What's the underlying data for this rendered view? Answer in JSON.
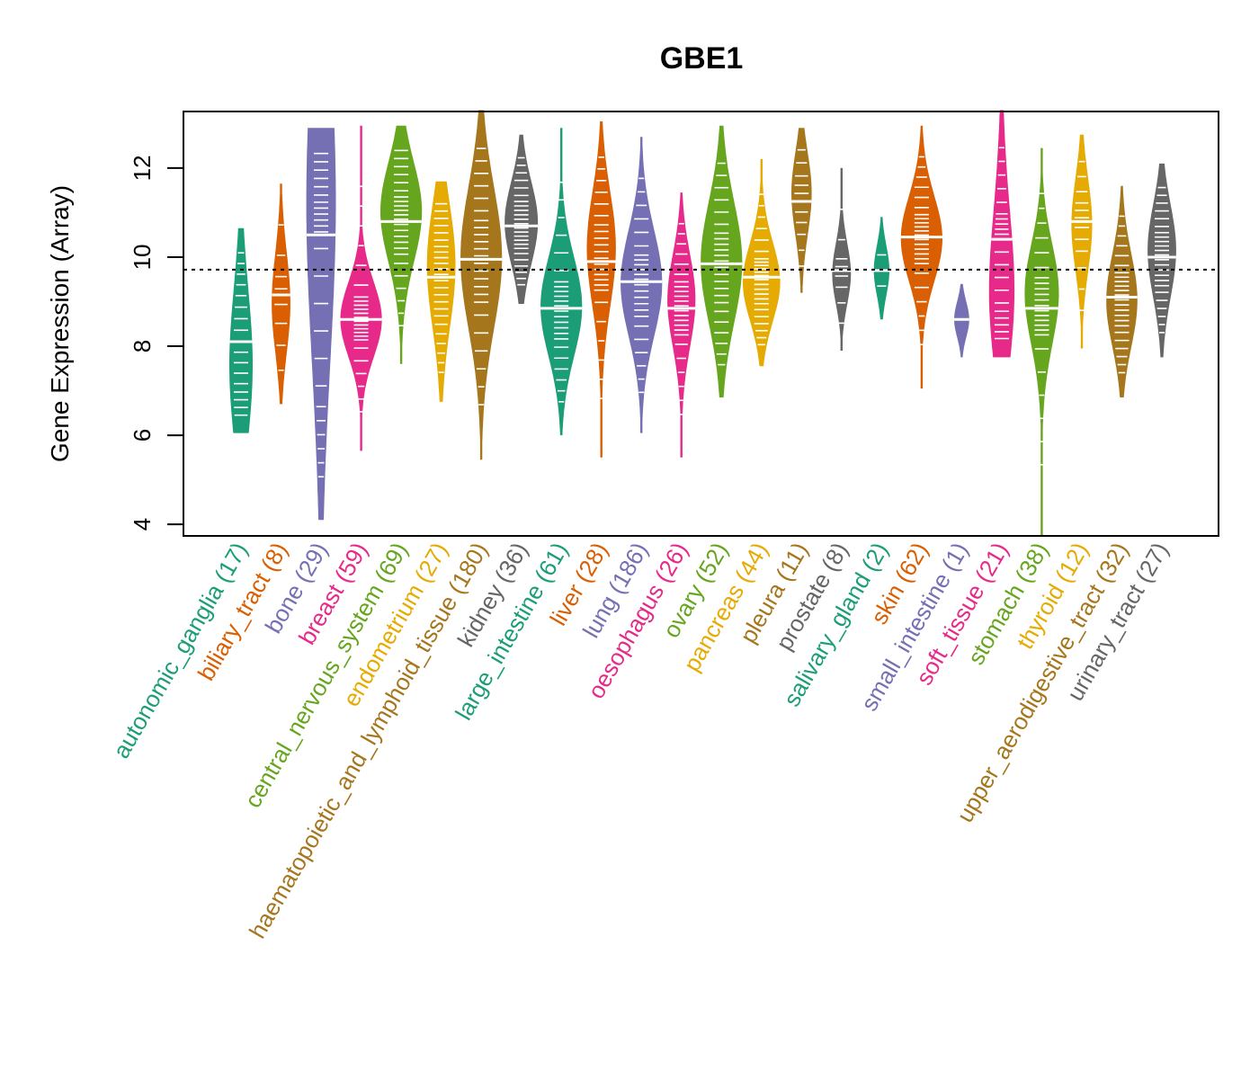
{
  "chart_data": {
    "type": "violin",
    "title": "GBE1",
    "xlabel": "",
    "ylabel": "Gene Expression (Array)",
    "ylim": [
      3.74,
      13.27
    ],
    "yticks": [
      4,
      6,
      8,
      10,
      12
    ],
    "reference_line": 9.72,
    "grid": false,
    "categories": [
      {
        "name": "autonomic_ganglia",
        "n": 17,
        "color": "#1B9E77",
        "min": 6.05,
        "q1": 7.1,
        "median": 8.1,
        "q3": 9.2,
        "max": 10.65,
        "mode": 7.4
      },
      {
        "name": "biliary_tract",
        "n": 8,
        "color": "#D95F02",
        "min": 6.7,
        "q1": 8.3,
        "median": 9.15,
        "q3": 9.7,
        "max": 11.65,
        "mode": 8.9
      },
      {
        "name": "bone",
        "n": 29,
        "color": "#7570B3",
        "min": 4.1,
        "q1": 6.8,
        "median": 10.5,
        "q3": 11.3,
        "max": 12.9,
        "mode": 11.5
      },
      {
        "name": "breast",
        "n": 59,
        "color": "#E7298A",
        "min": 5.65,
        "q1": 8.1,
        "median": 8.6,
        "q3": 9.15,
        "max": 12.95,
        "mode": 8.6
      },
      {
        "name": "central_nervous_system",
        "n": 69,
        "color": "#66A61E",
        "min": 7.6,
        "q1": 10.0,
        "median": 10.8,
        "q3": 11.4,
        "max": 12.95,
        "mode": 11.1
      },
      {
        "name": "endometrium",
        "n": 27,
        "color": "#E6AB02",
        "min": 6.75,
        "q1": 8.6,
        "median": 9.55,
        "q3": 10.3,
        "max": 11.7,
        "mode": 9.9
      },
      {
        "name": "haematopoietic_and_lymphoid_tissue",
        "n": 180,
        "color": "#A6761D",
        "min": 5.45,
        "q1": 8.9,
        "median": 9.95,
        "q3": 10.9,
        "max": 13.3,
        "mode": 10.0
      },
      {
        "name": "kidney",
        "n": 36,
        "color": "#666666",
        "min": 8.95,
        "q1": 10.15,
        "median": 10.7,
        "q3": 11.3,
        "max": 12.75,
        "mode": 10.8
      },
      {
        "name": "large_intestine",
        "n": 61,
        "color": "#1B9E77",
        "min": 6.0,
        "q1": 8.1,
        "median": 8.85,
        "q3": 9.5,
        "max": 12.9,
        "mode": 8.9
      },
      {
        "name": "liver",
        "n": 28,
        "color": "#D95F02",
        "min": 5.5,
        "q1": 9.2,
        "median": 9.9,
        "q3": 10.8,
        "max": 13.05,
        "mode": 10.3
      },
      {
        "name": "lung",
        "n": 186,
        "color": "#7570B3",
        "min": 6.05,
        "q1": 8.6,
        "median": 9.45,
        "q3": 10.1,
        "max": 12.7,
        "mode": 9.4
      },
      {
        "name": "oesophagus",
        "n": 26,
        "color": "#E7298A",
        "min": 5.5,
        "q1": 8.2,
        "median": 8.85,
        "q3": 9.5,
        "max": 11.45,
        "mode": 9.1
      },
      {
        "name": "ovary",
        "n": 52,
        "color": "#66A61E",
        "min": 6.85,
        "q1": 8.9,
        "median": 9.85,
        "q3": 10.6,
        "max": 12.95,
        "mode": 9.9
      },
      {
        "name": "pancreas",
        "n": 44,
        "color": "#E6AB02",
        "min": 7.55,
        "q1": 8.9,
        "median": 9.55,
        "q3": 10.0,
        "max": 12.2,
        "mode": 9.4
      },
      {
        "name": "pleura",
        "n": 11,
        "color": "#A6761D",
        "min": 9.2,
        "q1": 10.6,
        "median": 11.25,
        "q3": 11.75,
        "max": 12.9,
        "mode": 11.5
      },
      {
        "name": "prostate",
        "n": 8,
        "color": "#666666",
        "min": 7.9,
        "q1": 9.2,
        "median": 9.7,
        "q3": 10.05,
        "max": 12.0,
        "mode": 9.6
      },
      {
        "name": "salivary_gland",
        "n": 2,
        "color": "#1B9E77",
        "min": 8.6,
        "q1": 9.35,
        "median": 9.7,
        "q3": 10.05,
        "max": 10.9,
        "mode": 9.7
      },
      {
        "name": "skin",
        "n": 62,
        "color": "#D95F02",
        "min": 7.05,
        "q1": 9.8,
        "median": 10.45,
        "q3": 11.0,
        "max": 12.95,
        "mode": 10.4
      },
      {
        "name": "small_intestine",
        "n": 1,
        "color": "#7570B3",
        "min": 7.75,
        "q1": 8.35,
        "median": 8.6,
        "q3": 8.85,
        "max": 9.4,
        "mode": 8.6
      },
      {
        "name": "soft_tissue",
        "n": 21,
        "color": "#E7298A",
        "min": 7.75,
        "q1": 8.9,
        "median": 10.4,
        "q3": 11.0,
        "max": 13.3,
        "mode": 8.9
      },
      {
        "name": "stomach",
        "n": 38,
        "color": "#66A61E",
        "min": 3.74,
        "q1": 8.2,
        "median": 8.85,
        "q3": 9.6,
        "max": 12.45,
        "mode": 9.3
      },
      {
        "name": "thyroid",
        "n": 12,
        "color": "#E6AB02",
        "min": 7.95,
        "q1": 10.0,
        "median": 10.8,
        "q3": 11.3,
        "max": 12.75,
        "mode": 10.7
      },
      {
        "name": "upper_aerodigestive_tract",
        "n": 32,
        "color": "#A6761D",
        "min": 6.85,
        "q1": 8.4,
        "median": 9.1,
        "q3": 9.7,
        "max": 11.6,
        "mode": 9.0
      },
      {
        "name": "urinary_tract",
        "n": 27,
        "color": "#666666",
        "min": 7.75,
        "q1": 9.3,
        "median": 10.0,
        "q3": 10.6,
        "max": 12.1,
        "mode": 10.2
      }
    ]
  }
}
